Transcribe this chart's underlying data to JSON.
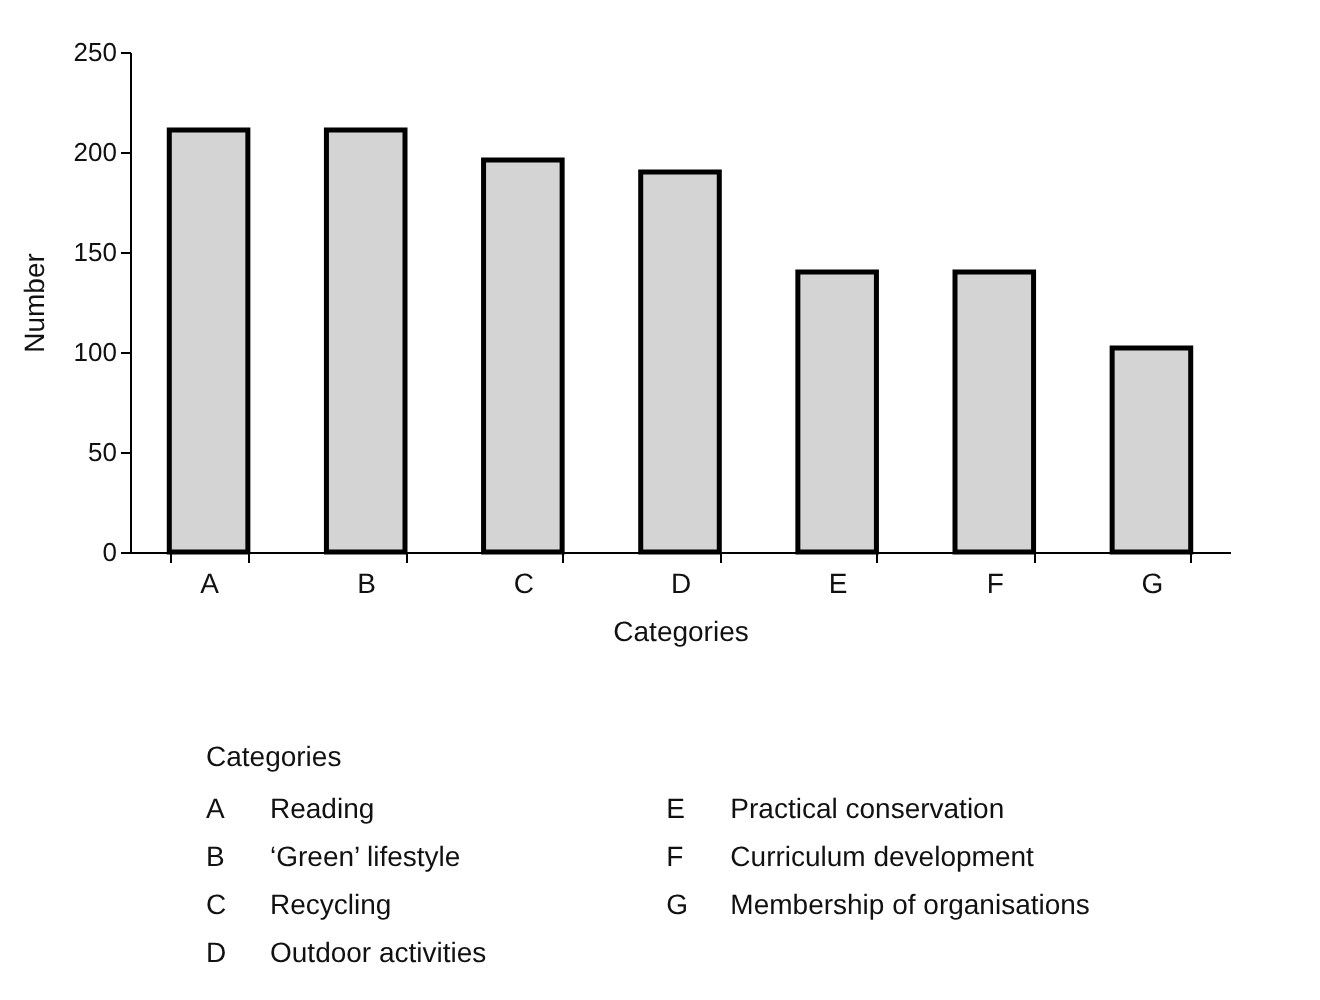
{
  "chart_data": {
    "type": "bar",
    "xlabel": "Categories",
    "ylabel": "Number",
    "categories": [
      "A",
      "B",
      "C",
      "D",
      "E",
      "F",
      "G"
    ],
    "values": [
      211,
      211,
      196,
      190,
      140,
      140,
      102
    ],
    "color": "#d4d4d4",
    "ylim": [
      0,
      250
    ],
    "yticks": [
      0,
      50,
      100,
      150,
      200,
      250
    ],
    "grid": false,
    "annotations": [
      "Categories",
      "A Reading",
      "B ‘Green’ lifestyle",
      "C Recycling",
      "D Outdoor activities",
      "E Practical conservation",
      "F Curriculum development",
      "G Membership of organisations"
    ]
  }
}
